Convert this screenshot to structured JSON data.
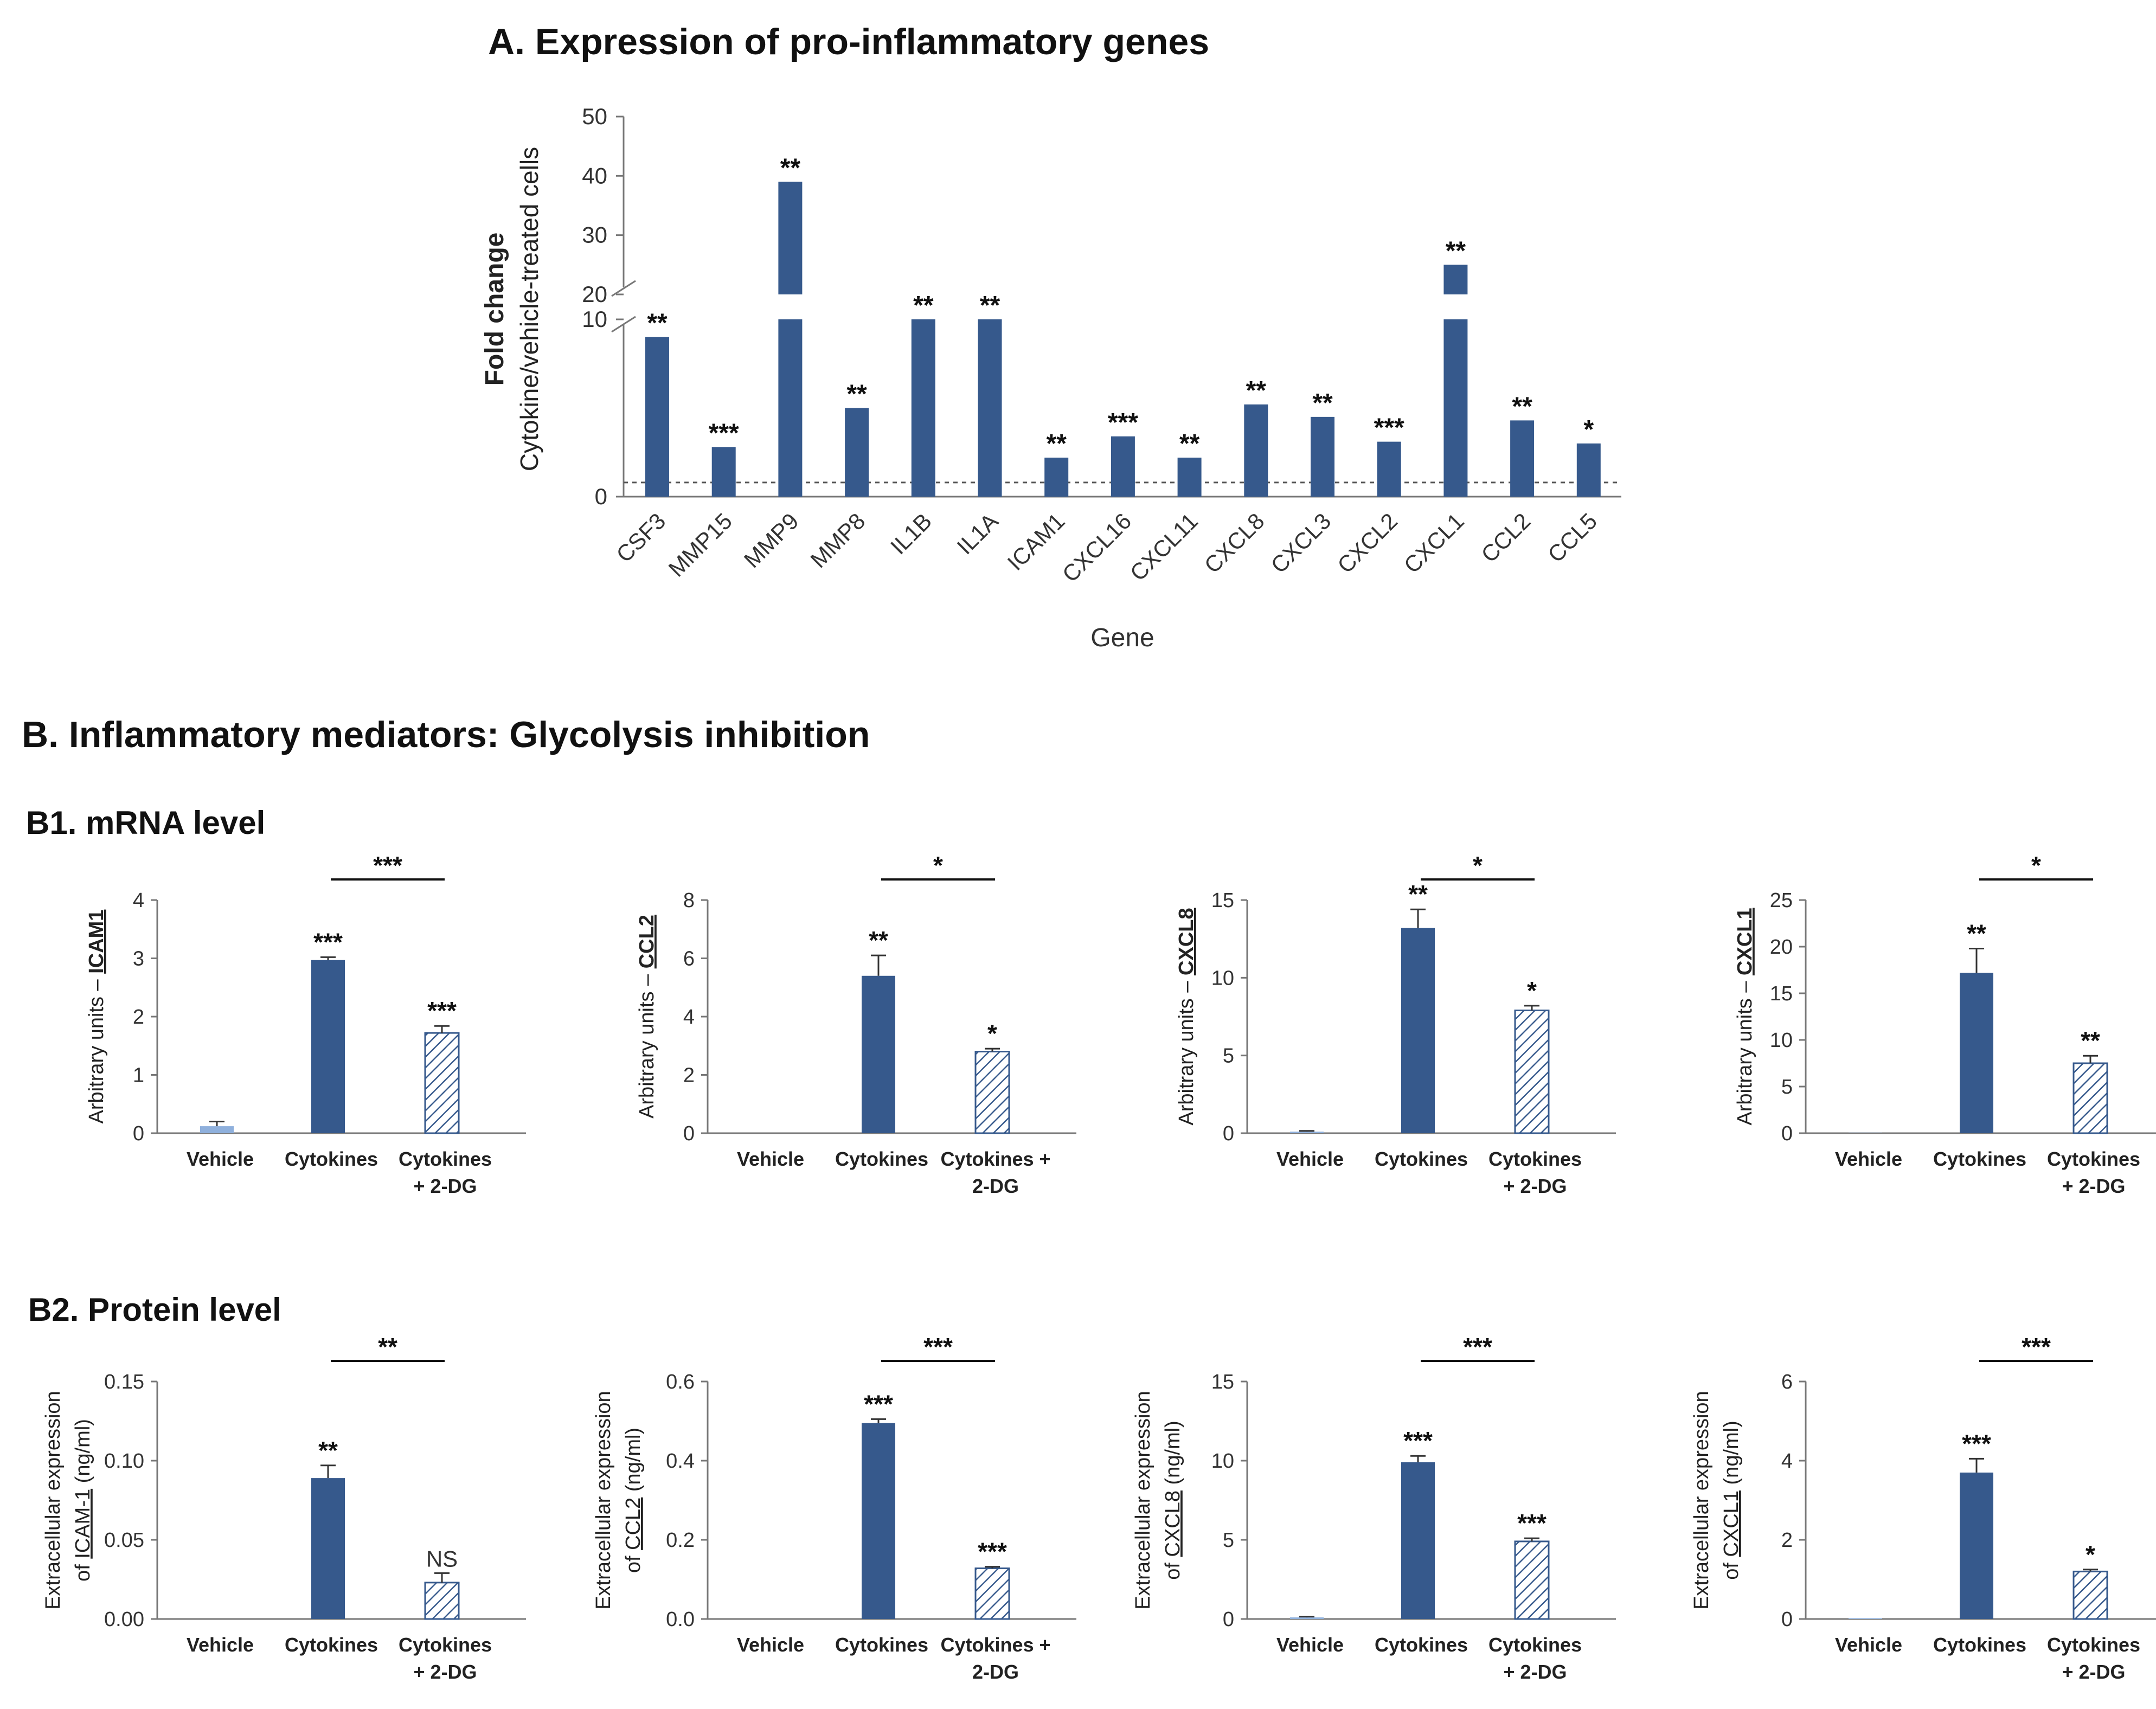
{
  "colors": {
    "cytokines": "#36598c",
    "vehicle": "#8fb0dc",
    "hatch": "#36598c",
    "axis": "#777777"
  },
  "titles": {
    "panel_a": "A. Expression of pro-inflammatory genes",
    "panel_b": "B. Inflammatory mediators: Glycolysis inhibition",
    "panel_b1": "B1. mRNA level",
    "panel_b2": "B2. Protein level"
  },
  "chart_data": [
    {
      "id": "A",
      "type": "bar",
      "title": "A. Expression of pro-inflammatory genes",
      "xlabel": "Gene",
      "ylabel_line1": "Fold change",
      "ylabel_line2": "Cytokine/vehicle-treated cells",
      "axis_break": {
        "lower": [
          0,
          10
        ],
        "upper": [
          20,
          50
        ]
      },
      "yticks": [
        "0",
        "10",
        "20",
        "30",
        "40",
        "50"
      ],
      "categories": [
        "CSF3",
        "MMP15",
        "MMP9",
        "MMP8",
        "IL1B",
        "IL1A",
        "ICAM1",
        "CXCL16",
        "CXCL11",
        "CXCL8",
        "CXCL3",
        "CXCL2",
        "CXCL1",
        "CCL2",
        "CCL5"
      ],
      "values": [
        9,
        2.8,
        39,
        5,
        12,
        12,
        2.2,
        3.4,
        2.2,
        5.2,
        4.5,
        3.1,
        25,
        4.3,
        3
      ],
      "significance": [
        "**",
        "***",
        "**",
        "**",
        "**",
        "**",
        "**",
        "***",
        "**",
        "**",
        "**",
        "***",
        "**",
        "**",
        "*"
      ],
      "reference_line": 0.8
    },
    {
      "id": "B1-ICAM1",
      "type": "bar",
      "group": "mRNA",
      "ylabel_prefix": "Arbitrary units – ",
      "ylabel_gene": "ICAM1",
      "categories": [
        "Vehicle",
        "Cytokines",
        "Cytokines\n+ 2-DG"
      ],
      "values": [
        0.12,
        2.97,
        1.72
      ],
      "errors": [
        0.08,
        0.05,
        0.12
      ],
      "ylim": [
        0,
        4
      ],
      "yticks": [
        "0",
        "1",
        "2",
        "3",
        "4"
      ],
      "bar_sig": [
        "",
        "***",
        "***"
      ],
      "bracket_sig": "***"
    },
    {
      "id": "B1-CCL2",
      "type": "bar",
      "group": "mRNA",
      "ylabel_prefix": "Arbitrary units – ",
      "ylabel_gene": "CCL2",
      "categories": [
        "Vehicle",
        "Cytokines",
        "Cytokines +\n2-DG"
      ],
      "values": [
        0,
        5.4,
        2.8
      ],
      "errors": [
        0,
        0.7,
        0.1
      ],
      "ylim": [
        0,
        8
      ],
      "yticks": [
        "0",
        "2",
        "4",
        "6",
        "8"
      ],
      "bar_sig": [
        "",
        "**",
        "*"
      ],
      "bracket_sig": "*"
    },
    {
      "id": "B1-CXCL8",
      "type": "bar",
      "group": "mRNA",
      "ylabel_prefix": "Arbitrary units – ",
      "ylabel_gene": "CXCL8",
      "categories": [
        "Vehicle",
        "Cytokines",
        "Cytokines\n+ 2-DG"
      ],
      "values": [
        0.1,
        13.2,
        7.9
      ],
      "errors": [
        0.05,
        1.2,
        0.3
      ],
      "ylim": [
        0,
        15
      ],
      "yticks": [
        "0",
        "5",
        "10",
        "15"
      ],
      "bar_sig": [
        "",
        "**",
        "*"
      ],
      "bracket_sig": "*"
    },
    {
      "id": "B1-CXCL1",
      "type": "bar",
      "group": "mRNA",
      "ylabel_prefix": "Arbitrary units – ",
      "ylabel_gene": "CXCL1",
      "categories": [
        "Vehicle",
        "Cytokines",
        "Cytokines\n+ 2-DG"
      ],
      "values": [
        0.05,
        17.2,
        7.5
      ],
      "errors": [
        0,
        2.6,
        0.8
      ],
      "ylim": [
        0,
        25
      ],
      "yticks": [
        "0",
        "5",
        "10",
        "15",
        "20",
        "25"
      ],
      "bar_sig": [
        "",
        "**",
        "**"
      ],
      "bracket_sig": "*"
    },
    {
      "id": "B2-ICAM1",
      "type": "bar",
      "group": "protein",
      "ylabel_line1": "Extracellular expression",
      "ylabel_prefix": "of ",
      "ylabel_gene": "ICAM-1",
      "ylabel_suffix": " (ng/ml)",
      "categories": [
        "Vehicle",
        "Cytokines",
        "Cytokines\n+ 2-DG"
      ],
      "values": [
        0,
        0.089,
        0.023
      ],
      "errors": [
        0,
        0.008,
        0.006
      ],
      "ylim": [
        0,
        0.15
      ],
      "yticks": [
        "0.00",
        "0.05",
        "0.10",
        "0.15"
      ],
      "bar_sig": [
        "",
        "**",
        "NS"
      ],
      "bracket_sig": "**"
    },
    {
      "id": "B2-CCL2",
      "type": "bar",
      "group": "protein",
      "ylabel_line1": "Extracellular expression",
      "ylabel_prefix": "of ",
      "ylabel_gene": "CCL2",
      "ylabel_suffix": " (ng/ml)",
      "categories": [
        "Vehicle",
        "Cytokines",
        "Cytokines +\n2-DG"
      ],
      "values": [
        0,
        0.495,
        0.128
      ],
      "errors": [
        0,
        0.01,
        0.004
      ],
      "ylim": [
        0,
        0.6
      ],
      "yticks": [
        "0.0",
        "0.2",
        "0.4",
        "0.6"
      ],
      "bar_sig": [
        "",
        "***",
        "***"
      ],
      "bracket_sig": "***"
    },
    {
      "id": "B2-CXCL8",
      "type": "bar",
      "group": "protein",
      "ylabel_line1": "Extracellular expression",
      "ylabel_prefix": "of ",
      "ylabel_gene": "CXCL8",
      "ylabel_suffix": " (ng/ml)",
      "categories": [
        "Vehicle",
        "Cytokines",
        "Cytokines\n+ 2-DG"
      ],
      "values": [
        0.1,
        9.9,
        4.9
      ],
      "errors": [
        0.05,
        0.4,
        0.2
      ],
      "ylim": [
        0,
        15
      ],
      "yticks": [
        "0",
        "5",
        "10",
        "15"
      ],
      "bar_sig": [
        "",
        "***",
        "***"
      ],
      "bracket_sig": "***"
    },
    {
      "id": "B2-CXCL1",
      "type": "bar",
      "group": "protein",
      "ylabel_line1": "Extracellular expression",
      "ylabel_prefix": "of ",
      "ylabel_gene": "CXCL1",
      "ylabel_suffix": " (ng/ml)",
      "categories": [
        "Vehicle",
        "Cytokines",
        "Cytokines\n+ 2-DG"
      ],
      "values": [
        0.02,
        3.7,
        1.2
      ],
      "errors": [
        0,
        0.35,
        0.05
      ],
      "ylim": [
        0,
        6
      ],
      "yticks": [
        "0",
        "2",
        "4",
        "6"
      ],
      "bar_sig": [
        "",
        "***",
        "*"
      ],
      "bracket_sig": "***"
    }
  ]
}
